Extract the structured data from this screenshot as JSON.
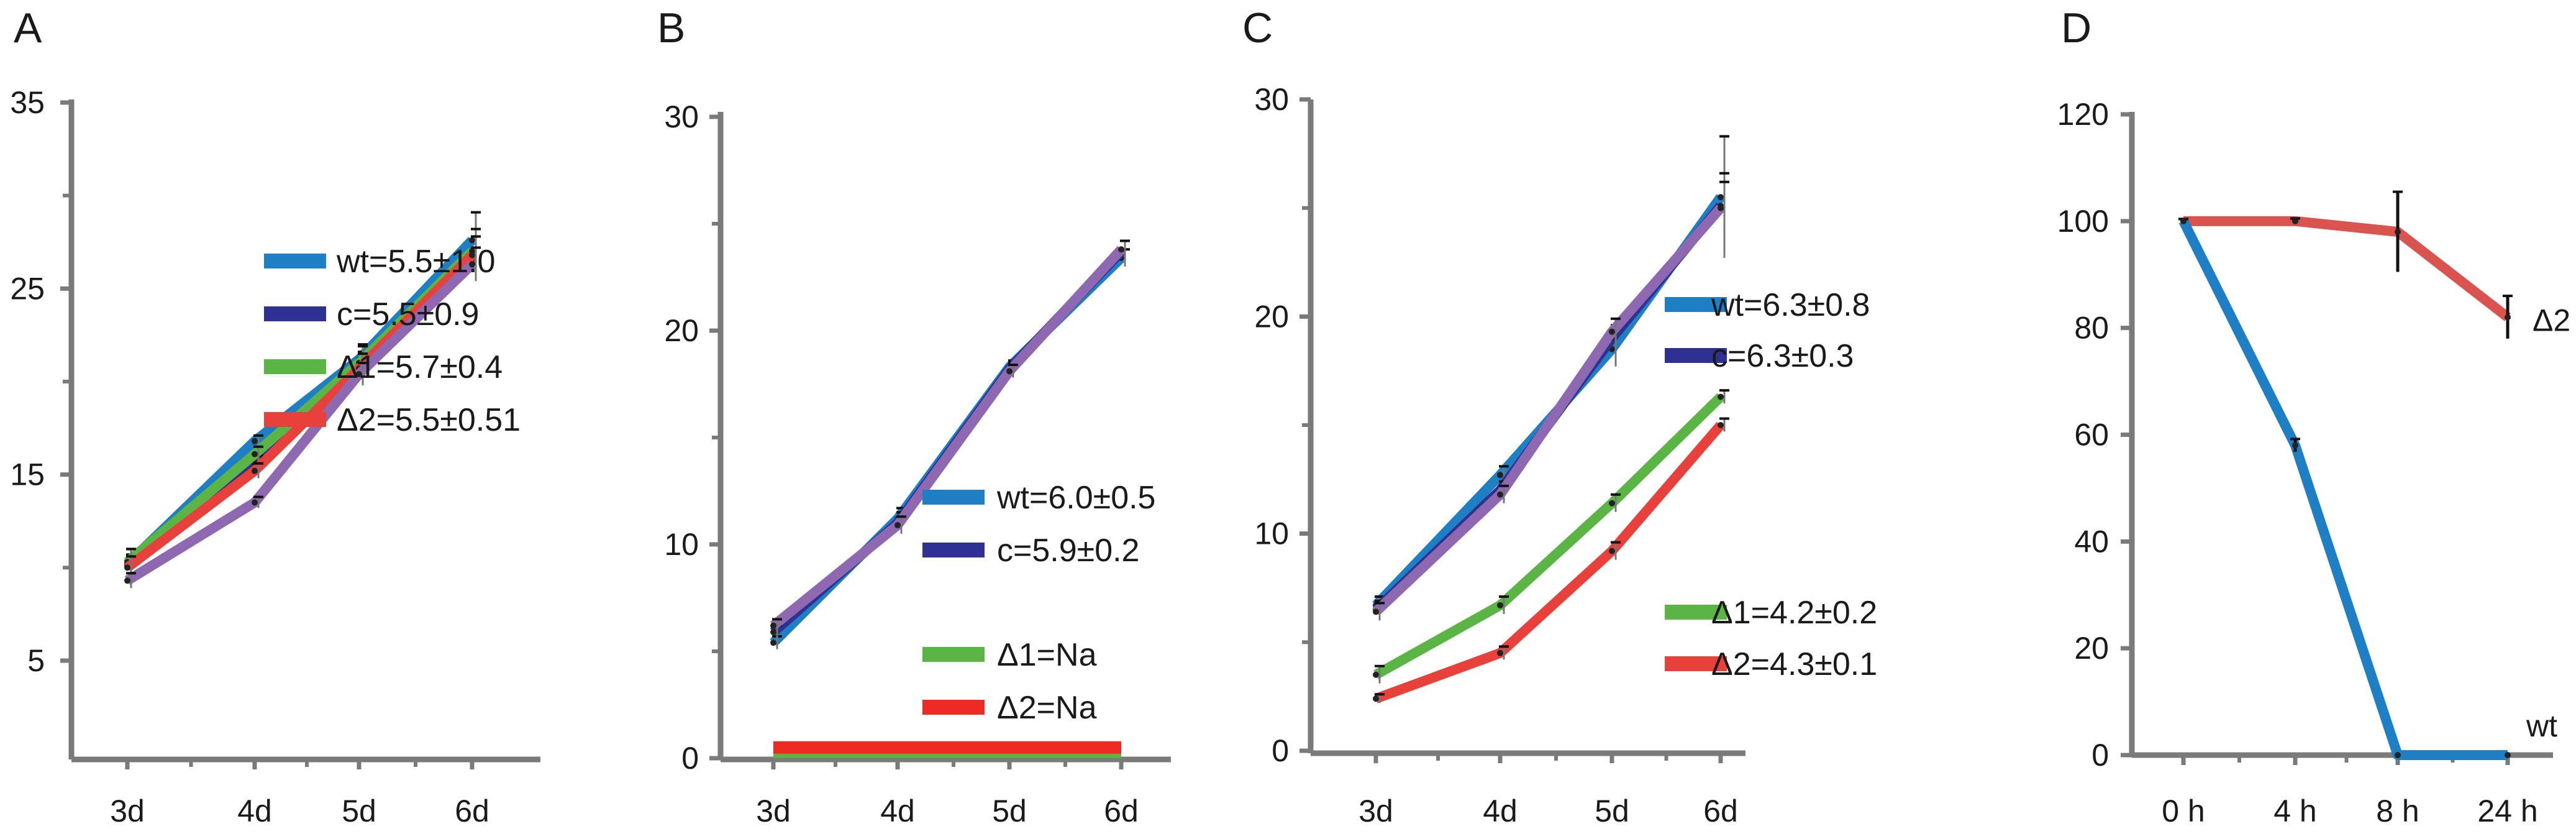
{
  "chart_data": [
    {
      "panel": "A",
      "type": "line",
      "categories": [
        "3d",
        "4d",
        "5d",
        "6d"
      ],
      "yticks": [
        "5",
        "15",
        "25",
        "35"
      ],
      "ylim": [
        0,
        35
      ],
      "series": [
        {
          "name": "wt",
          "legend": "wt=5.5±1.0",
          "color": "#1f7fc4",
          "values": [
            10.2,
            16.8,
            21.2,
            27.6
          ],
          "errors": [
            0.8,
            0.3,
            0.8,
            1.5
          ]
        },
        {
          "name": "c",
          "legend": "c=5.5±0.9",
          "color": "#2e3192",
          "values": [
            10.1,
            15.6,
            20.8,
            26.6
          ],
          "errors": [
            0.6,
            0.4,
            0.8,
            1.2
          ]
        },
        {
          "name": "Δ1",
          "legend": "Δ1=5.7±0.4",
          "color": "#5bb544",
          "values": [
            10.3,
            16.1,
            21.0,
            27.0
          ],
          "errors": [
            0.7,
            0.4,
            0.9,
            1.2
          ]
        },
        {
          "name": "Δ2",
          "legend": "Δ2=5.5±0.51",
          "color": "#e8413c",
          "values": [
            10.0,
            15.2,
            20.7,
            26.8
          ],
          "errors": [
            0.6,
            0.4,
            0.8,
            1.0
          ]
        },
        {
          "name": "purple",
          "legend": "",
          "color": "#8e68b0",
          "values": [
            9.3,
            13.5,
            20.4,
            26.3
          ],
          "errors": [
            0.4,
            0.3,
            0.6,
            0.9
          ]
        }
      ]
    },
    {
      "panel": "B",
      "type": "line",
      "categories": [
        "3d",
        "4d",
        "5d",
        "6d"
      ],
      "yticks": [
        "0",
        "10",
        "20",
        "30"
      ],
      "ylim": [
        0,
        30
      ],
      "series": [
        {
          "name": "wt",
          "legend": "wt=6.0±0.5",
          "color": "#1f7fc4",
          "values": [
            5.4,
            11.2,
            18.3,
            23.4
          ],
          "errors": [
            0.3,
            0.5,
            0.3,
            0.4
          ]
        },
        {
          "name": "c",
          "legend": "c=5.9±0.2",
          "color": "#2e3192",
          "values": [
            5.9,
            11.0,
            18.2,
            23.7
          ],
          "errors": [
            0.3,
            0.5,
            0.3,
            0.5
          ]
        },
        {
          "name": "Δ1",
          "legend": "Δ1=Na",
          "color": "#5bb544",
          "values": [
            0.3,
            0.3,
            0.3,
            0.3
          ],
          "errors": [
            0,
            0,
            0,
            0
          ]
        },
        {
          "name": "Δ2",
          "legend": "Δ2=Na",
          "color": "#ee2a24",
          "values": [
            0.5,
            0.5,
            0.5,
            0.5
          ],
          "errors": [
            0,
            0,
            0,
            0
          ]
        },
        {
          "name": "purple",
          "legend": "",
          "color": "#8e68b0",
          "values": [
            6.2,
            10.9,
            18.1,
            23.8
          ],
          "errors": [
            0.3,
            0.4,
            0.3,
            0.4
          ]
        }
      ]
    },
    {
      "panel": "C",
      "type": "line",
      "categories": [
        "3d",
        "4d",
        "5d",
        "6d"
      ],
      "yticks": [
        "0",
        "10",
        "20",
        "30"
      ],
      "ylim": [
        0,
        30
      ],
      "series": [
        {
          "name": "wt",
          "legend": "wt=6.3±0.8",
          "color": "#1f7fc4",
          "values": [
            6.7,
            12.7,
            18.5,
            25.5
          ],
          "errors": [
            0.4,
            0.4,
            0.8,
            2.8
          ]
        },
        {
          "name": "c",
          "legend": "c=6.3±0.3",
          "color": "#2e3192",
          "values": [
            6.5,
            12.0,
            19.0,
            25.1
          ],
          "errors": [
            0.4,
            0.4,
            0.6,
            1.5
          ]
        },
        {
          "name": "Δ1",
          "legend": "Δ1=4.2±0.2",
          "color": "#5bb544",
          "values": [
            3.5,
            6.7,
            11.4,
            16.3
          ],
          "errors": [
            0.4,
            0.4,
            0.4,
            0.3
          ]
        },
        {
          "name": "Δ2",
          "legend": "Δ2=4.3±0.1",
          "color": "#e8413c",
          "values": [
            2.4,
            4.5,
            9.2,
            15.0
          ],
          "errors": [
            0.2,
            0.3,
            0.4,
            0.3
          ]
        },
        {
          "name": "purple",
          "legend": "",
          "color": "#8e68b0",
          "values": [
            6.4,
            11.8,
            19.3,
            25.0
          ],
          "errors": [
            0.4,
            0.4,
            0.6,
            1.2
          ]
        }
      ]
    },
    {
      "panel": "D",
      "type": "line",
      "categories": [
        "0 h",
        "4 h",
        "8 h",
        "24 h"
      ],
      "yticks": [
        "0",
        "20",
        "40",
        "60",
        "80",
        "100",
        "120"
      ],
      "ylim": [
        0,
        120
      ],
      "series": [
        {
          "name": "Δ2",
          "label": "Δ2",
          "color": "#d9534f",
          "values": [
            100,
            100,
            98,
            82
          ],
          "errors": [
            0.4,
            0.5,
            7.5,
            4
          ]
        },
        {
          "name": "wt",
          "label": "wt",
          "color": "#1f7fc4",
          "values": [
            100,
            58,
            0,
            0
          ],
          "errors": [
            0.4,
            1.2,
            0,
            0
          ]
        }
      ]
    }
  ]
}
